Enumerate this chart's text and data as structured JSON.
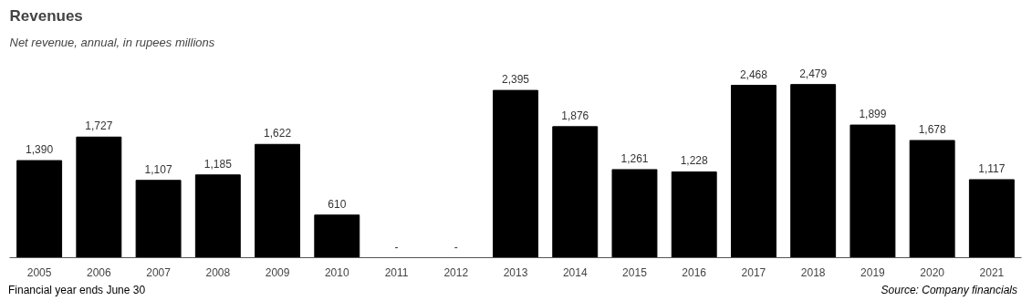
{
  "chart_data": {
    "type": "bar",
    "title": "Revenues",
    "subtitle": "Net revenue, annual, in rupees millions",
    "categories": [
      "2005",
      "2006",
      "2007",
      "2008",
      "2009",
      "2010",
      "2011",
      "2012",
      "2013",
      "2014",
      "2015",
      "2016",
      "2017",
      "2018",
      "2019",
      "2020",
      "2021"
    ],
    "values": [
      1390,
      1727,
      1107,
      1185,
      1622,
      610,
      null,
      null,
      2395,
      1876,
      1261,
      1228,
      2468,
      2479,
      1899,
      1678,
      1117
    ],
    "value_labels": [
      "1,390",
      "1,727",
      "1,107",
      "1,185",
      "1,622",
      "610",
      "-",
      "-",
      "2,395",
      "1,876",
      "1,261",
      "1,228",
      "2,468",
      "2,479",
      "1,899",
      "1,678",
      "1,117"
    ],
    "color": "#000000",
    "grid": false,
    "annotations": [
      "Financial year ends June 30",
      "Source: Company financials"
    ]
  }
}
